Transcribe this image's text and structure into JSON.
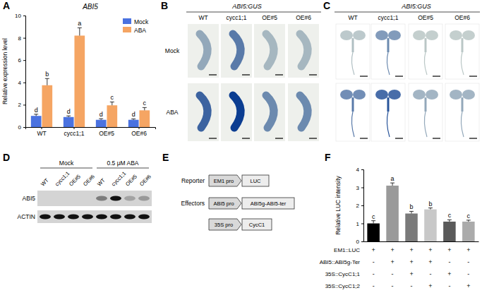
{
  "chart_data": [
    {
      "type": "bar",
      "title": "ABI5",
      "y_label": "Relative expression level",
      "categories": [
        "WT",
        "cycc1;1",
        "OE#5",
        "OE#6"
      ],
      "series": [
        {
          "name": "Mock",
          "color": "#4a72e0",
          "values": [
            1.0,
            0.9,
            0.65,
            0.65
          ],
          "errors": [
            0.15,
            0.1,
            0.1,
            0.08
          ],
          "letters": [
            "d",
            "d",
            "d",
            "d"
          ]
        },
        {
          "name": "ABA",
          "color": "#f5a563",
          "values": [
            3.75,
            8.2,
            1.95,
            1.5
          ],
          "errors": [
            0.6,
            0.7,
            0.3,
            0.25
          ],
          "letters": [
            "b",
            "a",
            "c",
            "c"
          ]
        }
      ],
      "ylim": [
        0,
        10
      ],
      "yticks": [
        0,
        2,
        4,
        6,
        8,
        10
      ],
      "legend": "top-right"
    },
    {
      "type": "bar",
      "y_label": "Relative LUC intensity",
      "categories": [
        null,
        null,
        null,
        null,
        null,
        null
      ],
      "values": [
        1.0,
        3.1,
        1.55,
        1.78,
        1.1,
        1.1
      ],
      "errors": [
        0.15,
        0.15,
        0.12,
        0.08,
        0.1,
        0.08
      ],
      "letters": [
        "c",
        "a",
        "b",
        "b",
        "c",
        "c"
      ],
      "colors": [
        "#000000",
        "#9a9a9a",
        "#7a7a7a",
        "#c8c8c8",
        "#5a5a5a",
        "#ababab"
      ],
      "ylim": [
        0,
        4
      ],
      "yticks": [
        0,
        1,
        2,
        3,
        4
      ],
      "conditions": [
        {
          "label": "EM1::LUC",
          "marks": [
            "+",
            "+",
            "+",
            "+",
            "+",
            "+"
          ]
        },
        {
          "label": "ABI5::ABI5g-Ter",
          "marks": [
            "-",
            "+",
            "+",
            "+",
            "-",
            "-"
          ]
        },
        {
          "label": "35S::CycC1;1",
          "marks": [
            "-",
            "-",
            "+",
            "-",
            "+",
            "-"
          ]
        },
        {
          "label": "35S::CycC1;2",
          "marks": [
            "-",
            "-",
            "-",
            "+",
            "-",
            "+"
          ]
        }
      ]
    }
  ],
  "panels": {
    "labels": [
      "A",
      "B",
      "C",
      "D",
      "E",
      "F"
    ],
    "B": {
      "title": "ABI5:GUS",
      "columns": [
        "WT",
        "cycc1;1",
        "OE#5",
        "OE#6"
      ],
      "rows": [
        "Mock",
        "ABA"
      ],
      "staining": [
        [
          0.3,
          0.6,
          0.2,
          0.2
        ],
        [
          0.75,
          1.0,
          0.5,
          0.5
        ]
      ]
    },
    "C": {
      "title": "ABI5:GUS",
      "columns": [
        "WT",
        "cycc1;1",
        "OE#5",
        "OE#6"
      ],
      "staining": [
        [
          0.15,
          0.5,
          0.1,
          0.1
        ],
        [
          0.6,
          0.85,
          0.3,
          0.3
        ]
      ]
    },
    "D": {
      "groups": [
        "Mock",
        "0.5 μM ABA"
      ],
      "lanes": [
        "WT",
        "cycc1;1",
        "OE#5",
        "OE#6",
        "WT",
        "cycc1;1",
        "OE#5",
        "OE#6"
      ],
      "rows": [
        {
          "label": "ABI5",
          "intensity": [
            0,
            0,
            0,
            0,
            0.45,
            1,
            0.25,
            0.3
          ]
        },
        {
          "label": "ACTIN",
          "intensity": [
            1,
            1,
            1,
            1,
            1,
            1,
            1,
            1
          ]
        }
      ]
    },
    "E": {
      "rows": [
        {
          "label": "Reporter",
          "parts": [
            "EM1 pro",
            "LUC"
          ]
        },
        {
          "label": "Effectors",
          "parts": [
            "ABI5 pro",
            "ABI5g-ABI5-ter"
          ]
        },
        {
          "parts": [
            "35S pro",
            "CycC1"
          ]
        }
      ]
    }
  }
}
